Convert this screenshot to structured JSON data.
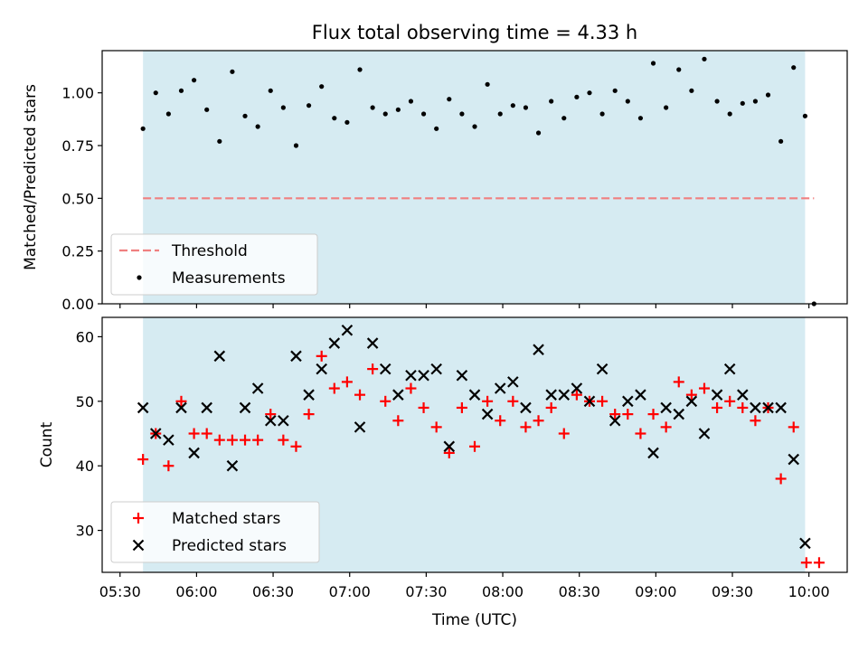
{
  "chart_data": [
    {
      "type": "scatter",
      "title": "Flux total observing time = 4.33 h",
      "xlabel": "",
      "ylabel": "Matched/Predicted stars",
      "ylim": [
        0.0,
        1.2
      ],
      "yticks": [
        "0.00",
        "0.25",
        "0.50",
        "0.75",
        "1.00"
      ],
      "ytick_values": [
        0.0,
        0.25,
        0.5,
        0.75,
        1.0
      ],
      "xlim_minutes": [
        323,
        615
      ],
      "observing_window_minutes": [
        339,
        598.5
      ],
      "shade_color": "#add8e6",
      "threshold": {
        "name": "Threshold",
        "value": 0.5,
        "x_range_minutes": [
          339,
          602
        ],
        "color": "#f08080"
      },
      "series": [
        {
          "name": "Measurements",
          "color": "#000000",
          "marker": "dot",
          "x_minutes": [
            339,
            344,
            349,
            354,
            359,
            364,
            369,
            374,
            379,
            384,
            389,
            394,
            399,
            404,
            409,
            414,
            419,
            424,
            429,
            434,
            439,
            444,
            449,
            454,
            459,
            464,
            469,
            474,
            479,
            484,
            489,
            494,
            499,
            504,
            509,
            514,
            519,
            524,
            529,
            534,
            539,
            544,
            549,
            554,
            559,
            564,
            569,
            574,
            579,
            584,
            589,
            594,
            598.5,
            602
          ],
          "values": [
            0.83,
            1.0,
            0.9,
            1.01,
            1.06,
            0.92,
            0.77,
            1.1,
            0.89,
            0.84,
            1.01,
            0.93,
            0.75,
            0.94,
            1.03,
            0.88,
            0.86,
            1.11,
            0.93,
            0.9,
            0.92,
            0.96,
            0.9,
            0.83,
            0.97,
            0.9,
            0.84,
            1.04,
            0.9,
            0.94,
            0.93,
            0.81,
            0.96,
            0.88,
            0.98,
            1.0,
            0.9,
            1.01,
            0.96,
            0.88,
            1.14,
            0.93,
            1.11,
            1.01,
            1.16,
            0.96,
            0.9,
            0.95,
            0.96,
            0.99,
            0.77,
            1.12,
            0.89,
            0.0
          ]
        }
      ],
      "legend": [
        "Threshold",
        "Measurements"
      ],
      "legend_position": "lower-left"
    },
    {
      "type": "scatter",
      "title": "",
      "xlabel": "Time (UTC)",
      "ylabel": "Count",
      "ylim": [
        23.5,
        63
      ],
      "yticks": [
        "30",
        "40",
        "50",
        "60"
      ],
      "ytick_values": [
        30,
        40,
        50,
        60
      ],
      "xticks": [
        "05:30",
        "06:00",
        "06:30",
        "07:00",
        "07:30",
        "08:00",
        "08:30",
        "09:00",
        "09:30",
        "10:00"
      ],
      "xtick_minutes": [
        330,
        360,
        390,
        420,
        450,
        480,
        510,
        540,
        570,
        600
      ],
      "xlim_minutes": [
        323,
        615
      ],
      "observing_window_minutes": [
        339,
        598.5
      ],
      "series": [
        {
          "name": "Matched stars",
          "color": "#ff0000",
          "marker": "plus",
          "x_minutes": [
            339,
            344,
            349,
            354,
            359,
            364,
            369,
            374,
            379,
            384,
            389,
            394,
            399,
            404,
            409,
            414,
            419,
            424,
            429,
            434,
            439,
            444,
            449,
            454,
            459,
            464,
            469,
            474,
            479,
            484,
            489,
            494,
            499,
            504,
            509,
            514,
            519,
            524,
            529,
            534,
            539,
            544,
            549,
            554,
            559,
            564,
            569,
            574,
            579,
            584,
            589,
            594,
            599,
            604
          ],
          "values": [
            41,
            45,
            40,
            50,
            45,
            45,
            44,
            44,
            44,
            44,
            48,
            44,
            43,
            48,
            57,
            52,
            53,
            51,
            55,
            50,
            47,
            52,
            49,
            46,
            42,
            49,
            43,
            50,
            47,
            50,
            46,
            47,
            49,
            45,
            51,
            50,
            50,
            48,
            48,
            45,
            48,
            46,
            53,
            51,
            52,
            49,
            50,
            49,
            47,
            49,
            38,
            46,
            25,
            25
          ]
        },
        {
          "name": "Predicted stars",
          "color": "#000000",
          "marker": "x",
          "x_minutes": [
            339,
            344,
            349,
            354,
            359,
            364,
            369,
            374,
            379,
            384,
            389,
            394,
            399,
            404,
            409,
            414,
            419,
            424,
            429,
            434,
            439,
            444,
            449,
            454,
            459,
            464,
            469,
            474,
            479,
            484,
            489,
            494,
            499,
            504,
            509,
            514,
            519,
            524,
            529,
            534,
            539,
            544,
            549,
            554,
            559,
            564,
            569,
            574,
            579,
            584,
            589,
            594,
            598.5
          ],
          "values": [
            49,
            45,
            44,
            49,
            42,
            49,
            57,
            40,
            49,
            52,
            47,
            47,
            57,
            51,
            55,
            59,
            61,
            46,
            59,
            55,
            51,
            54,
            54,
            55,
            43,
            54,
            51,
            48,
            52,
            53,
            49,
            58,
            51,
            51,
            52,
            50,
            55,
            47,
            50,
            51,
            42,
            49,
            48,
            50,
            45,
            51,
            55,
            51,
            49,
            49,
            49,
            41,
            28
          ]
        }
      ],
      "legend": [
        "Matched stars",
        "Predicted stars"
      ],
      "legend_position": "lower-left"
    }
  ]
}
